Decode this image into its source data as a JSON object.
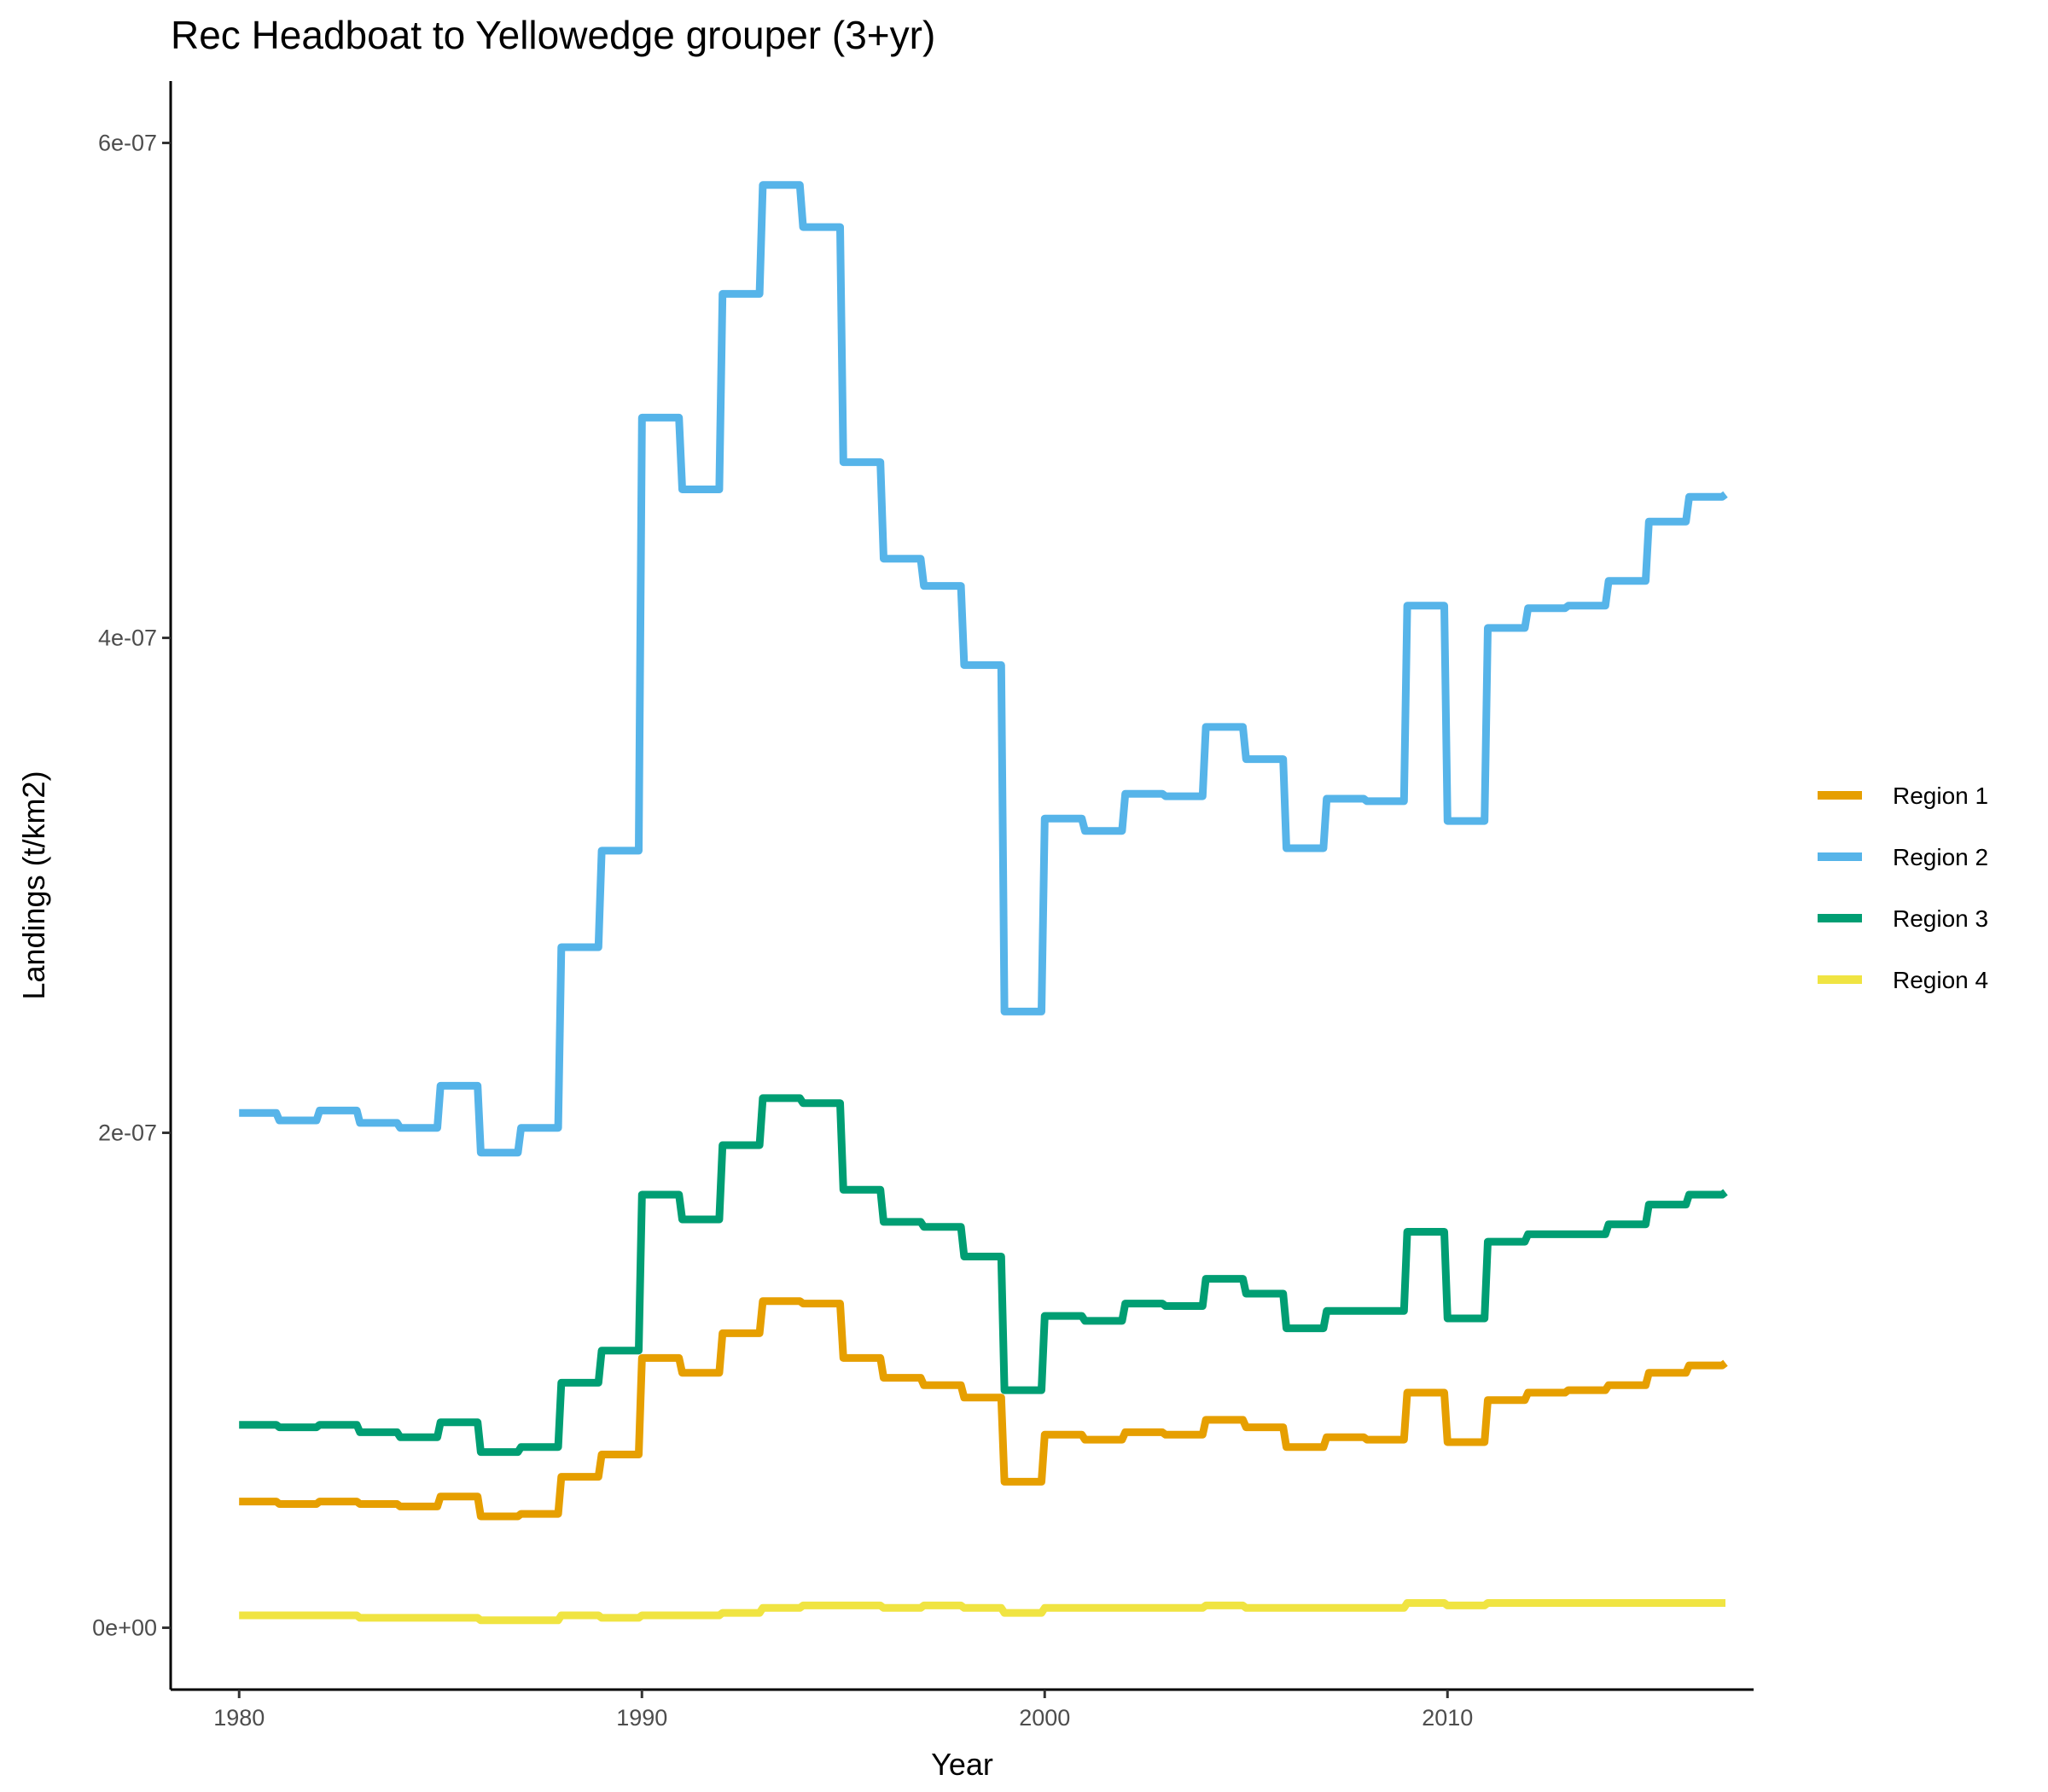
{
  "chart_data": {
    "type": "line",
    "title": "Rec Headboat to Yellowedge grouper (3+yr)",
    "xlabel": "Year",
    "ylabel": "Landings (t/km2)",
    "xlim": [
      1978.3,
      2017.6
    ],
    "ylim": [
      -2.5e-08,
      6.25e-07
    ],
    "x_ticks": [
      1980,
      1990,
      2000,
      2010
    ],
    "x_tick_labels": [
      "1980",
      "1990",
      "2000",
      "2010"
    ],
    "y_ticks": [
      0,
      2e-07,
      4e-07,
      6e-07
    ],
    "y_tick_labels": [
      "0e+00",
      "2e-07",
      "4e-07",
      "6e-07"
    ],
    "grid": false,
    "legend_position": "right",
    "series": [
      {
        "name": "Region 1",
        "color": "#E69F00",
        "points": [
          [
            1980.0,
            5.1e-08
          ],
          [
            1981.0,
            5e-08
          ],
          [
            1982.0,
            5.1e-08
          ],
          [
            1983.0,
            5e-08
          ],
          [
            1984.0,
            4.9e-08
          ],
          [
            1985.0,
            5.3e-08
          ],
          [
            1986.0,
            4.5e-08
          ],
          [
            1987.0,
            4.6e-08
          ],
          [
            1988.0,
            6.1e-08
          ],
          [
            1989.0,
            7e-08
          ],
          [
            1990.0,
            1.09e-07
          ],
          [
            1991.0,
            1.03e-07
          ],
          [
            1992.0,
            1.19e-07
          ],
          [
            1993.0,
            1.32e-07
          ],
          [
            1994.0,
            1.31e-07
          ],
          [
            1995.0,
            1.09e-07
          ],
          [
            1996.0,
            1.01e-07
          ],
          [
            1997.0,
            9.8e-08
          ],
          [
            1998.0,
            9.3e-08
          ],
          [
            1999.0,
            5.9e-08
          ],
          [
            2000.0,
            7.8e-08
          ],
          [
            2001.0,
            7.6e-08
          ],
          [
            2002.0,
            7.9e-08
          ],
          [
            2003.0,
            7.8e-08
          ],
          [
            2004.0,
            8.4e-08
          ],
          [
            2005.0,
            8.1e-08
          ],
          [
            2006.0,
            7.3e-08
          ],
          [
            2007.0,
            7.7e-08
          ],
          [
            2008.0,
            7.6e-08
          ],
          [
            2009.0,
            9.5e-08
          ],
          [
            2010.0,
            7.5e-08
          ],
          [
            2011.0,
            9.2e-08
          ],
          [
            2012.0,
            9.5e-08
          ],
          [
            2013.0,
            9.6e-08
          ],
          [
            2014.0,
            9.8e-08
          ],
          [
            2015.0,
            1.03e-07
          ],
          [
            2016.0,
            1.06e-07
          ],
          [
            2016.9,
            1.07e-07
          ]
        ]
      },
      {
        "name": "Region 2",
        "color": "#56B4E9",
        "points": [
          [
            1980.0,
            2.08e-07
          ],
          [
            1981.0,
            2.05e-07
          ],
          [
            1982.0,
            2.09e-07
          ],
          [
            1983.0,
            2.04e-07
          ],
          [
            1984.0,
            2.02e-07
          ],
          [
            1985.0,
            2.19e-07
          ],
          [
            1986.0,
            1.92e-07
          ],
          [
            1987.0,
            2.02e-07
          ],
          [
            1988.0,
            2.75e-07
          ],
          [
            1989.0,
            3.14e-07
          ],
          [
            1990.0,
            4.89e-07
          ],
          [
            1991.0,
            4.6e-07
          ],
          [
            1992.0,
            5.39e-07
          ],
          [
            1993.0,
            5.83e-07
          ],
          [
            1994.0,
            5.66e-07
          ],
          [
            1995.0,
            4.71e-07
          ],
          [
            1996.0,
            4.32e-07
          ],
          [
            1997.0,
            4.21e-07
          ],
          [
            1998.0,
            3.89e-07
          ],
          [
            1999.0,
            2.49e-07
          ],
          [
            2000.0,
            3.27e-07
          ],
          [
            2001.0,
            3.22e-07
          ],
          [
            2002.0,
            3.37e-07
          ],
          [
            2003.0,
            3.36e-07
          ],
          [
            2004.0,
            3.64e-07
          ],
          [
            2005.0,
            3.51e-07
          ],
          [
            2006.0,
            3.15e-07
          ],
          [
            2007.0,
            3.35e-07
          ],
          [
            2008.0,
            3.34e-07
          ],
          [
            2009.0,
            4.13e-07
          ],
          [
            2010.0,
            3.26e-07
          ],
          [
            2011.0,
            4.04e-07
          ],
          [
            2012.0,
            4.12e-07
          ],
          [
            2013.0,
            4.13e-07
          ],
          [
            2014.0,
            4.23e-07
          ],
          [
            2015.0,
            4.47e-07
          ],
          [
            2016.0,
            4.57e-07
          ],
          [
            2016.9,
            4.58e-07
          ]
        ]
      },
      {
        "name": "Region 3",
        "color": "#009E73",
        "points": [
          [
            1980.0,
            8.2e-08
          ],
          [
            1981.0,
            8.1e-08
          ],
          [
            1982.0,
            8.2e-08
          ],
          [
            1983.0,
            7.9e-08
          ],
          [
            1984.0,
            7.7e-08
          ],
          [
            1985.0,
            8.3e-08
          ],
          [
            1986.0,
            7.1e-08
          ],
          [
            1987.0,
            7.3e-08
          ],
          [
            1988.0,
            9.9e-08
          ],
          [
            1989.0,
            1.12e-07
          ],
          [
            1990.0,
            1.75e-07
          ],
          [
            1991.0,
            1.65e-07
          ],
          [
            1992.0,
            1.95e-07
          ],
          [
            1993.0,
            2.14e-07
          ],
          [
            1994.0,
            2.12e-07
          ],
          [
            1995.0,
            1.77e-07
          ],
          [
            1996.0,
            1.64e-07
          ],
          [
            1997.0,
            1.62e-07
          ],
          [
            1998.0,
            1.5e-07
          ],
          [
            1999.0,
            9.6e-08
          ],
          [
            2000.0,
            1.26e-07
          ],
          [
            2001.0,
            1.24e-07
          ],
          [
            2002.0,
            1.31e-07
          ],
          [
            2003.0,
            1.3e-07
          ],
          [
            2004.0,
            1.41e-07
          ],
          [
            2005.0,
            1.35e-07
          ],
          [
            2006.0,
            1.21e-07
          ],
          [
            2007.0,
            1.28e-07
          ],
          [
            2008.0,
            1.28e-07
          ],
          [
            2009.0,
            1.6e-07
          ],
          [
            2010.0,
            1.25e-07
          ],
          [
            2011.0,
            1.56e-07
          ],
          [
            2012.0,
            1.59e-07
          ],
          [
            2013.0,
            1.59e-07
          ],
          [
            2014.0,
            1.63e-07
          ],
          [
            2015.0,
            1.71e-07
          ],
          [
            2016.0,
            1.75e-07
          ],
          [
            2016.9,
            1.76e-07
          ]
        ]
      },
      {
        "name": "Region 4",
        "color": "#F0E442",
        "points": [
          [
            1980.0,
            5e-09
          ],
          [
            1981.0,
            5e-09
          ],
          [
            1982.0,
            5e-09
          ],
          [
            1983.0,
            4e-09
          ],
          [
            1984.0,
            4e-09
          ],
          [
            1985.0,
            4e-09
          ],
          [
            1986.0,
            3e-09
          ],
          [
            1987.0,
            3e-09
          ],
          [
            1988.0,
            5e-09
          ],
          [
            1989.0,
            4e-09
          ],
          [
            1990.0,
            5e-09
          ],
          [
            1991.0,
            5e-09
          ],
          [
            1992.0,
            6e-09
          ],
          [
            1993.0,
            8e-09
          ],
          [
            1994.0,
            9e-09
          ],
          [
            1995.0,
            9e-09
          ],
          [
            1996.0,
            8e-09
          ],
          [
            1997.0,
            9e-09
          ],
          [
            1998.0,
            8e-09
          ],
          [
            1999.0,
            6e-09
          ],
          [
            2000.0,
            8e-09
          ],
          [
            2001.0,
            8e-09
          ],
          [
            2002.0,
            8e-09
          ],
          [
            2003.0,
            8e-09
          ],
          [
            2004.0,
            9e-09
          ],
          [
            2005.0,
            8e-09
          ],
          [
            2006.0,
            8e-09
          ],
          [
            2007.0,
            8e-09
          ],
          [
            2008.0,
            8e-09
          ],
          [
            2009.0,
            1e-08
          ],
          [
            2010.0,
            9e-09
          ],
          [
            2011.0,
            1e-08
          ],
          [
            2012.0,
            1e-08
          ],
          [
            2013.0,
            1e-08
          ],
          [
            2014.0,
            1e-08
          ],
          [
            2015.0,
            1e-08
          ],
          [
            2016.0,
            1e-08
          ],
          [
            2016.9,
            1e-08
          ]
        ]
      }
    ]
  }
}
